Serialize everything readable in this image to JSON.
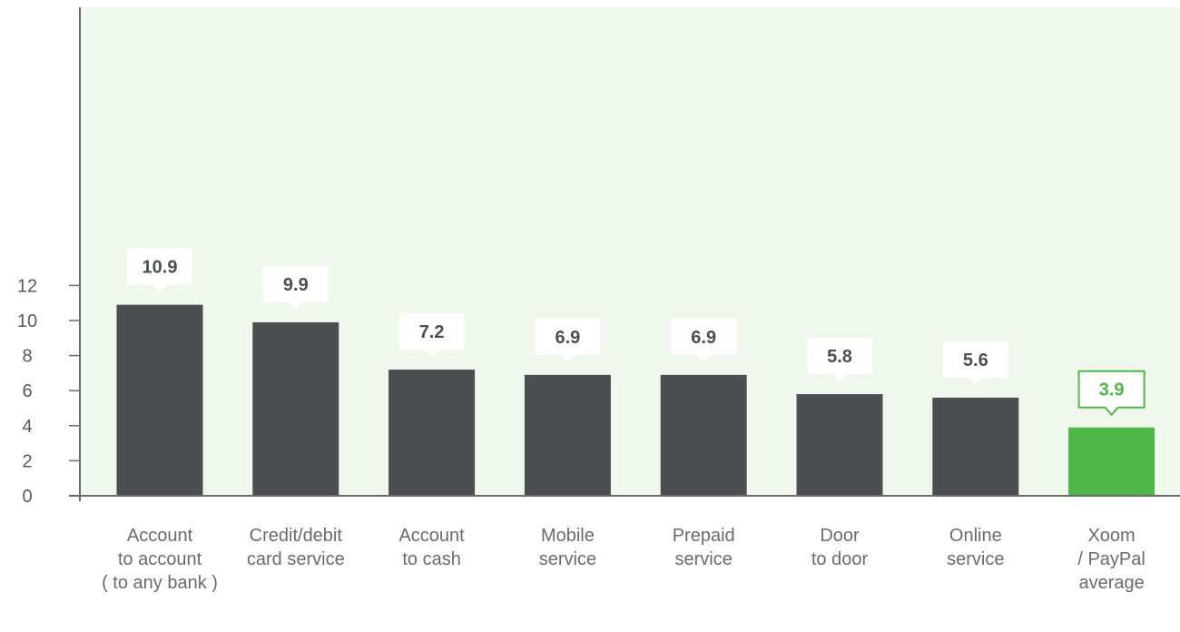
{
  "chart_data": {
    "type": "bar",
    "categories": [
      [
        "Account",
        "to account",
        "( to any bank )"
      ],
      [
        "Credit/debit",
        "card service"
      ],
      [
        "Account",
        "to cash"
      ],
      [
        "Mobile",
        "service"
      ],
      [
        "Prepaid",
        "service"
      ],
      [
        "Door",
        "to door"
      ],
      [
        "Online",
        "service"
      ],
      [
        "Xoom",
        "/ PayPal",
        "average"
      ]
    ],
    "values": [
      10.9,
      9.9,
      7.2,
      6.9,
      6.9,
      5.8,
      5.6,
      3.9
    ],
    "value_labels": [
      "10.9",
      "9.9",
      "7.2",
      "6.9",
      "6.9",
      "5.8",
      "5.6",
      "3.9"
    ],
    "highlight_index": 7,
    "title": "",
    "xlabel": "",
    "ylabel": "",
    "ylim": [
      0,
      12
    ],
    "yticks": [
      0,
      2,
      4,
      6,
      8,
      10,
      12
    ],
    "grid": false,
    "colors": {
      "plot_background": "#f0f7ec",
      "bar": "#4d4e52",
      "highlight_bar": "#4db848",
      "axis": "#6b6b6b",
      "label_box": "#ffffff"
    }
  }
}
